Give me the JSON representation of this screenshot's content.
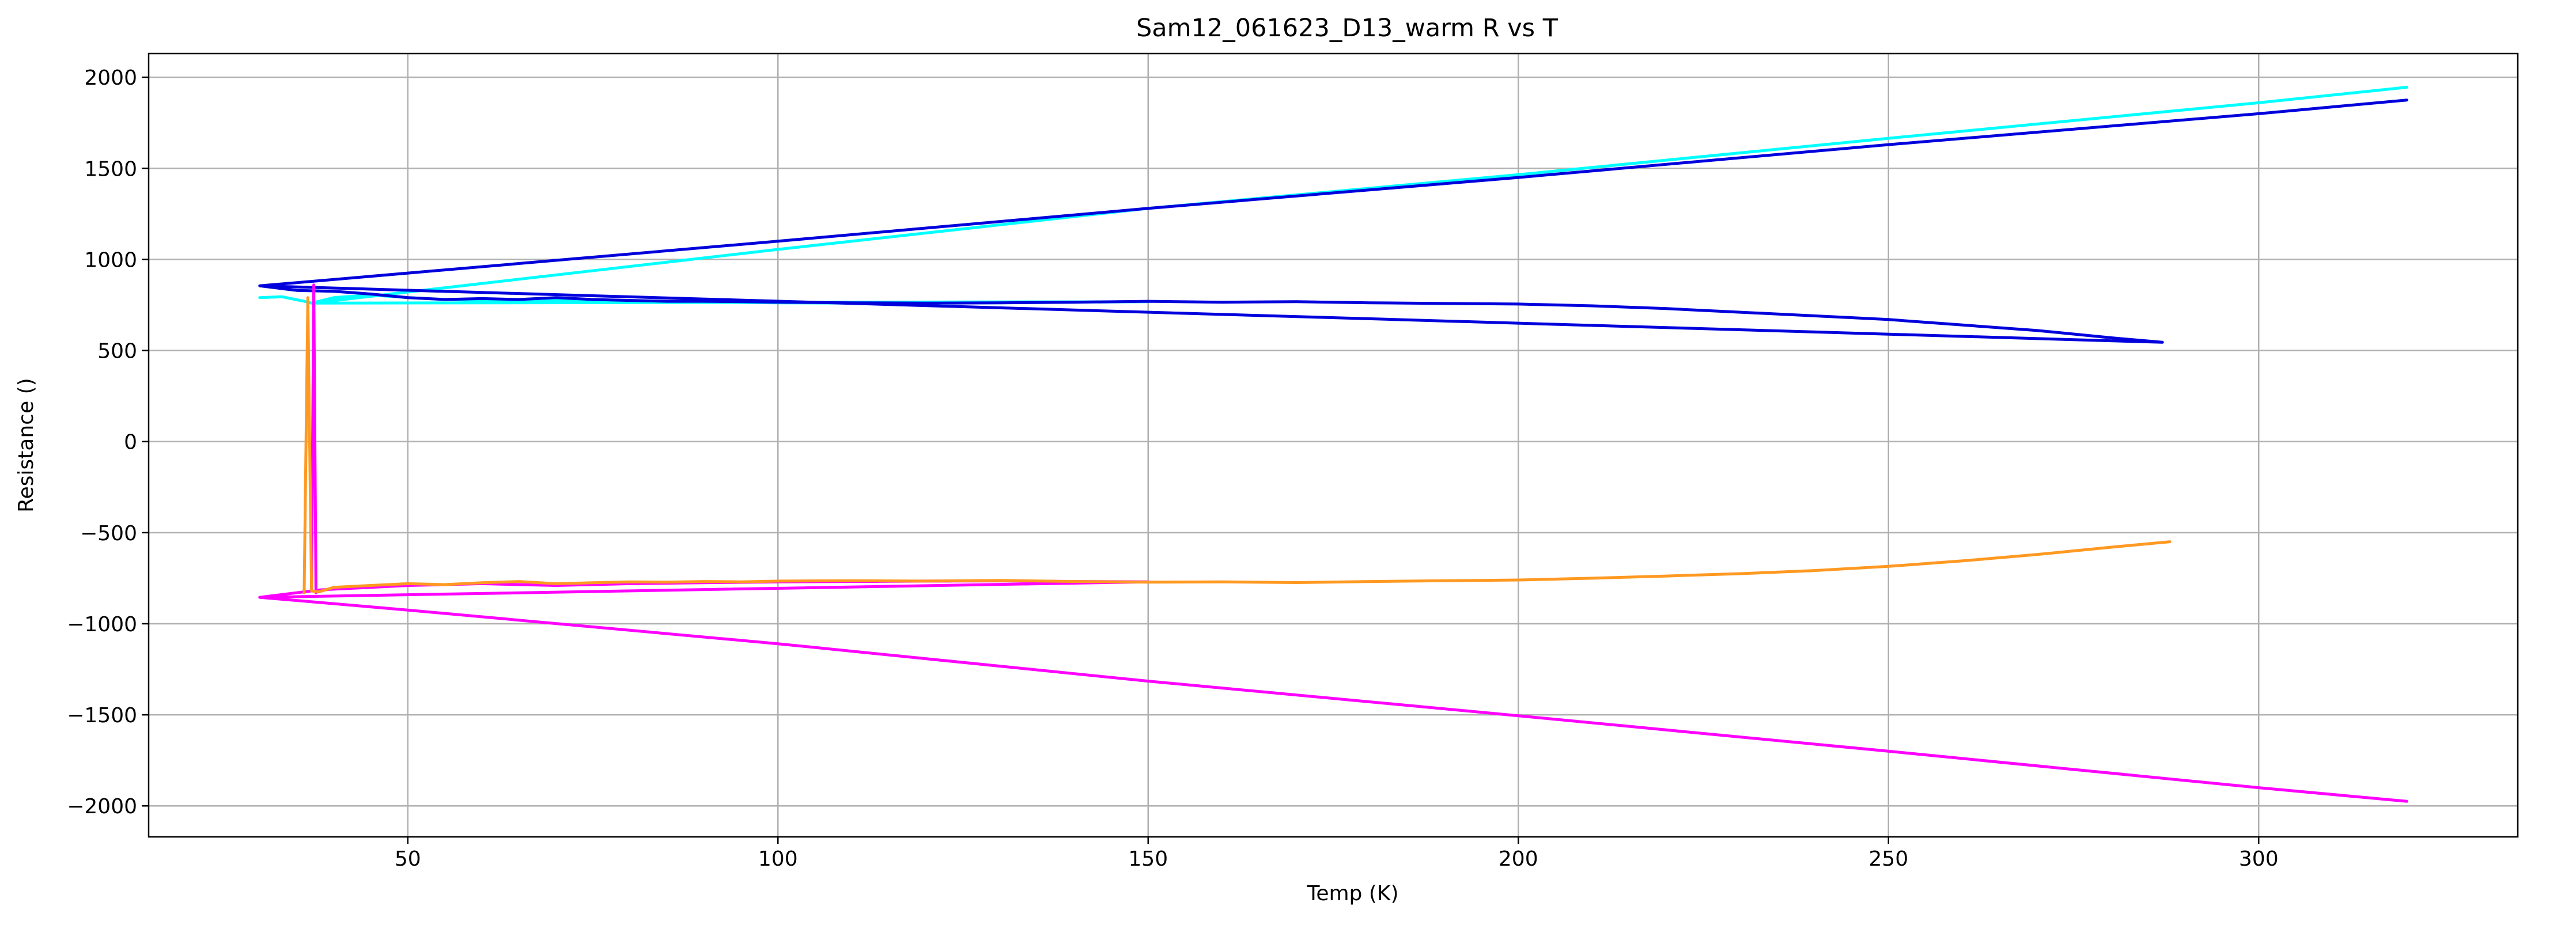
{
  "chart_data": {
    "type": "line",
    "title": "Sam12_061623_D13_warm R vs T",
    "xlabel": "Temp (K)",
    "ylabel": "Resistance ()",
    "xlim": [
      15,
      335
    ],
    "ylim": [
      -2170,
      2130
    ],
    "xticks": [
      50,
      100,
      150,
      200,
      250,
      300
    ],
    "yticks": [
      2000,
      1500,
      1000,
      500,
      0,
      -500,
      -1000,
      -1500,
      -2000
    ],
    "grid": true,
    "legend": "none",
    "series": [
      {
        "color": "#00ffff",
        "x": [
          30,
          33,
          36,
          37,
          40,
          45,
          50,
          55,
          60,
          65,
          70,
          75,
          80,
          90,
          100,
          110,
          120,
          130,
          140,
          150,
          37,
          100,
          150,
          200,
          250,
          300,
          320
        ],
        "y": [
          790,
          795,
          770,
          760,
          790,
          805,
          790,
          780,
          775,
          770,
          775,
          770,
          768,
          765,
          762,
          760,
          760,
          762,
          765,
          768,
          760,
          1055,
          1280,
          1465,
          1665,
          1860,
          1945
        ]
      },
      {
        "color": "#0000dd",
        "x": [
          30,
          35,
          40,
          45,
          50,
          55,
          60,
          65,
          70,
          75,
          80,
          85,
          90,
          95,
          100,
          110,
          120,
          130,
          140,
          150,
          160,
          170,
          180,
          190,
          200,
          210,
          220,
          230,
          240,
          250,
          260,
          270,
          280,
          287,
          30,
          100,
          150,
          200,
          250,
          300,
          320
        ],
        "y": [
          855,
          830,
          825,
          810,
          790,
          780,
          785,
          780,
          790,
          780,
          775,
          770,
          770,
          768,
          765,
          762,
          760,
          762,
          765,
          770,
          765,
          768,
          762,
          758,
          755,
          745,
          730,
          710,
          690,
          670,
          640,
          610,
          570,
          545,
          855,
          1100,
          1280,
          1450,
          1630,
          1800,
          1875
        ]
      },
      {
        "color": "#ff00ff",
        "x": [
          30,
          37,
          37.3,
          37.6,
          38,
          40,
          45,
          50,
          55,
          60,
          65,
          70,
          75,
          80,
          90,
          100,
          110,
          120,
          130,
          140,
          150,
          30,
          50,
          100,
          150,
          200,
          250,
          300,
          320
        ],
        "y": [
          -855,
          -820,
          860,
          -830,
          -815,
          -810,
          -800,
          -790,
          -785,
          -780,
          -785,
          -790,
          -785,
          -780,
          -775,
          -770,
          -768,
          -766,
          -765,
          -768,
          -770,
          -855,
          -925,
          -1110,
          -1315,
          -1505,
          -1700,
          -1900,
          -1975
        ]
      },
      {
        "color": "#ff9922",
        "x": [
          36,
          36.5,
          37,
          38,
          40,
          45,
          50,
          55,
          60,
          65,
          70,
          75,
          80,
          85,
          90,
          95,
          100,
          110,
          120,
          130,
          140,
          150,
          160,
          170,
          180,
          190,
          200,
          210,
          220,
          230,
          240,
          250,
          260,
          270,
          280,
          288
        ],
        "y": [
          -830,
          790,
          -820,
          -825,
          -800,
          -790,
          -780,
          -785,
          -775,
          -768,
          -780,
          -775,
          -770,
          -772,
          -768,
          -770,
          -766,
          -764,
          -766,
          -762,
          -768,
          -772,
          -770,
          -774,
          -768,
          -764,
          -760,
          -750,
          -738,
          -725,
          -708,
          -685,
          -655,
          -620,
          -580,
          -550
        ]
      }
    ]
  }
}
